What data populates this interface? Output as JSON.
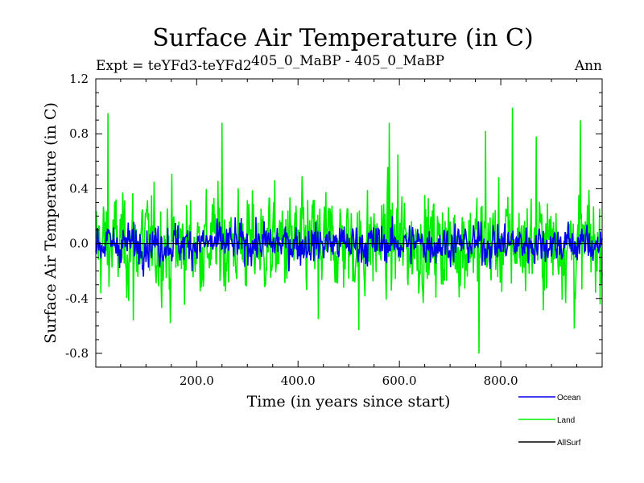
{
  "chart_data": {
    "type": "line",
    "title": "Surface Air Temperature (in C)",
    "subtitle_left": "Expt = teYFd3-teYFd2",
    "subtitle_center": "405_0_MaBP - 405_0_MaBP",
    "subtitle_right": "Ann",
    "xlabel": "Time (in years since start)",
    "ylabel": "Surface Air Temperature (in C)",
    "xlim": [
      1,
      1000
    ],
    "ylim": [
      -0.9,
      1.2
    ],
    "xticks": [
      200,
      400,
      600,
      800
    ],
    "xtick_labels": [
      "200.0",
      "400.0",
      "600.0",
      "800.0"
    ],
    "yticks": [
      -0.8,
      -0.4,
      0.0,
      0.4,
      0.8,
      1.2
    ],
    "ytick_labels": [
      "-0.8",
      "-0.4",
      "0.0",
      "0.4",
      "0.8",
      "1.2"
    ],
    "series": [
      {
        "name": "Land",
        "color": "#00ee00",
        "n_points": 1000,
        "amplitude_rms": 0.25,
        "peaks": [
          [
            25,
            0.95
          ],
          [
            75,
            -0.56
          ],
          [
            148,
            -0.58
          ],
          [
            250,
            0.88
          ],
          [
            440,
            -0.55
          ],
          [
            520,
            -0.63
          ],
          [
            580,
            0.88
          ],
          [
            597,
            0.65
          ],
          [
            757,
            -0.8
          ],
          [
            770,
            0.82
          ],
          [
            823,
            0.99
          ],
          [
            870,
            0.78
          ],
          [
            945,
            -0.62
          ],
          [
            957,
            0.9
          ]
        ]
      },
      {
        "name": "Ocean",
        "color": "#0000ee",
        "n_points": 1000,
        "amplitude_rms": 0.1,
        "peaks": []
      },
      {
        "name": "AllSurf",
        "color": "#000000",
        "n_points": 1000,
        "constant_value": 0.0
      }
    ],
    "legend": [
      {
        "name": "Ocean",
        "color": "#0000ee"
      },
      {
        "name": "Land",
        "color": "#00ee00"
      },
      {
        "name": "AllSurf",
        "color": "#000000"
      }
    ],
    "legend_position": "bottom-right"
  }
}
